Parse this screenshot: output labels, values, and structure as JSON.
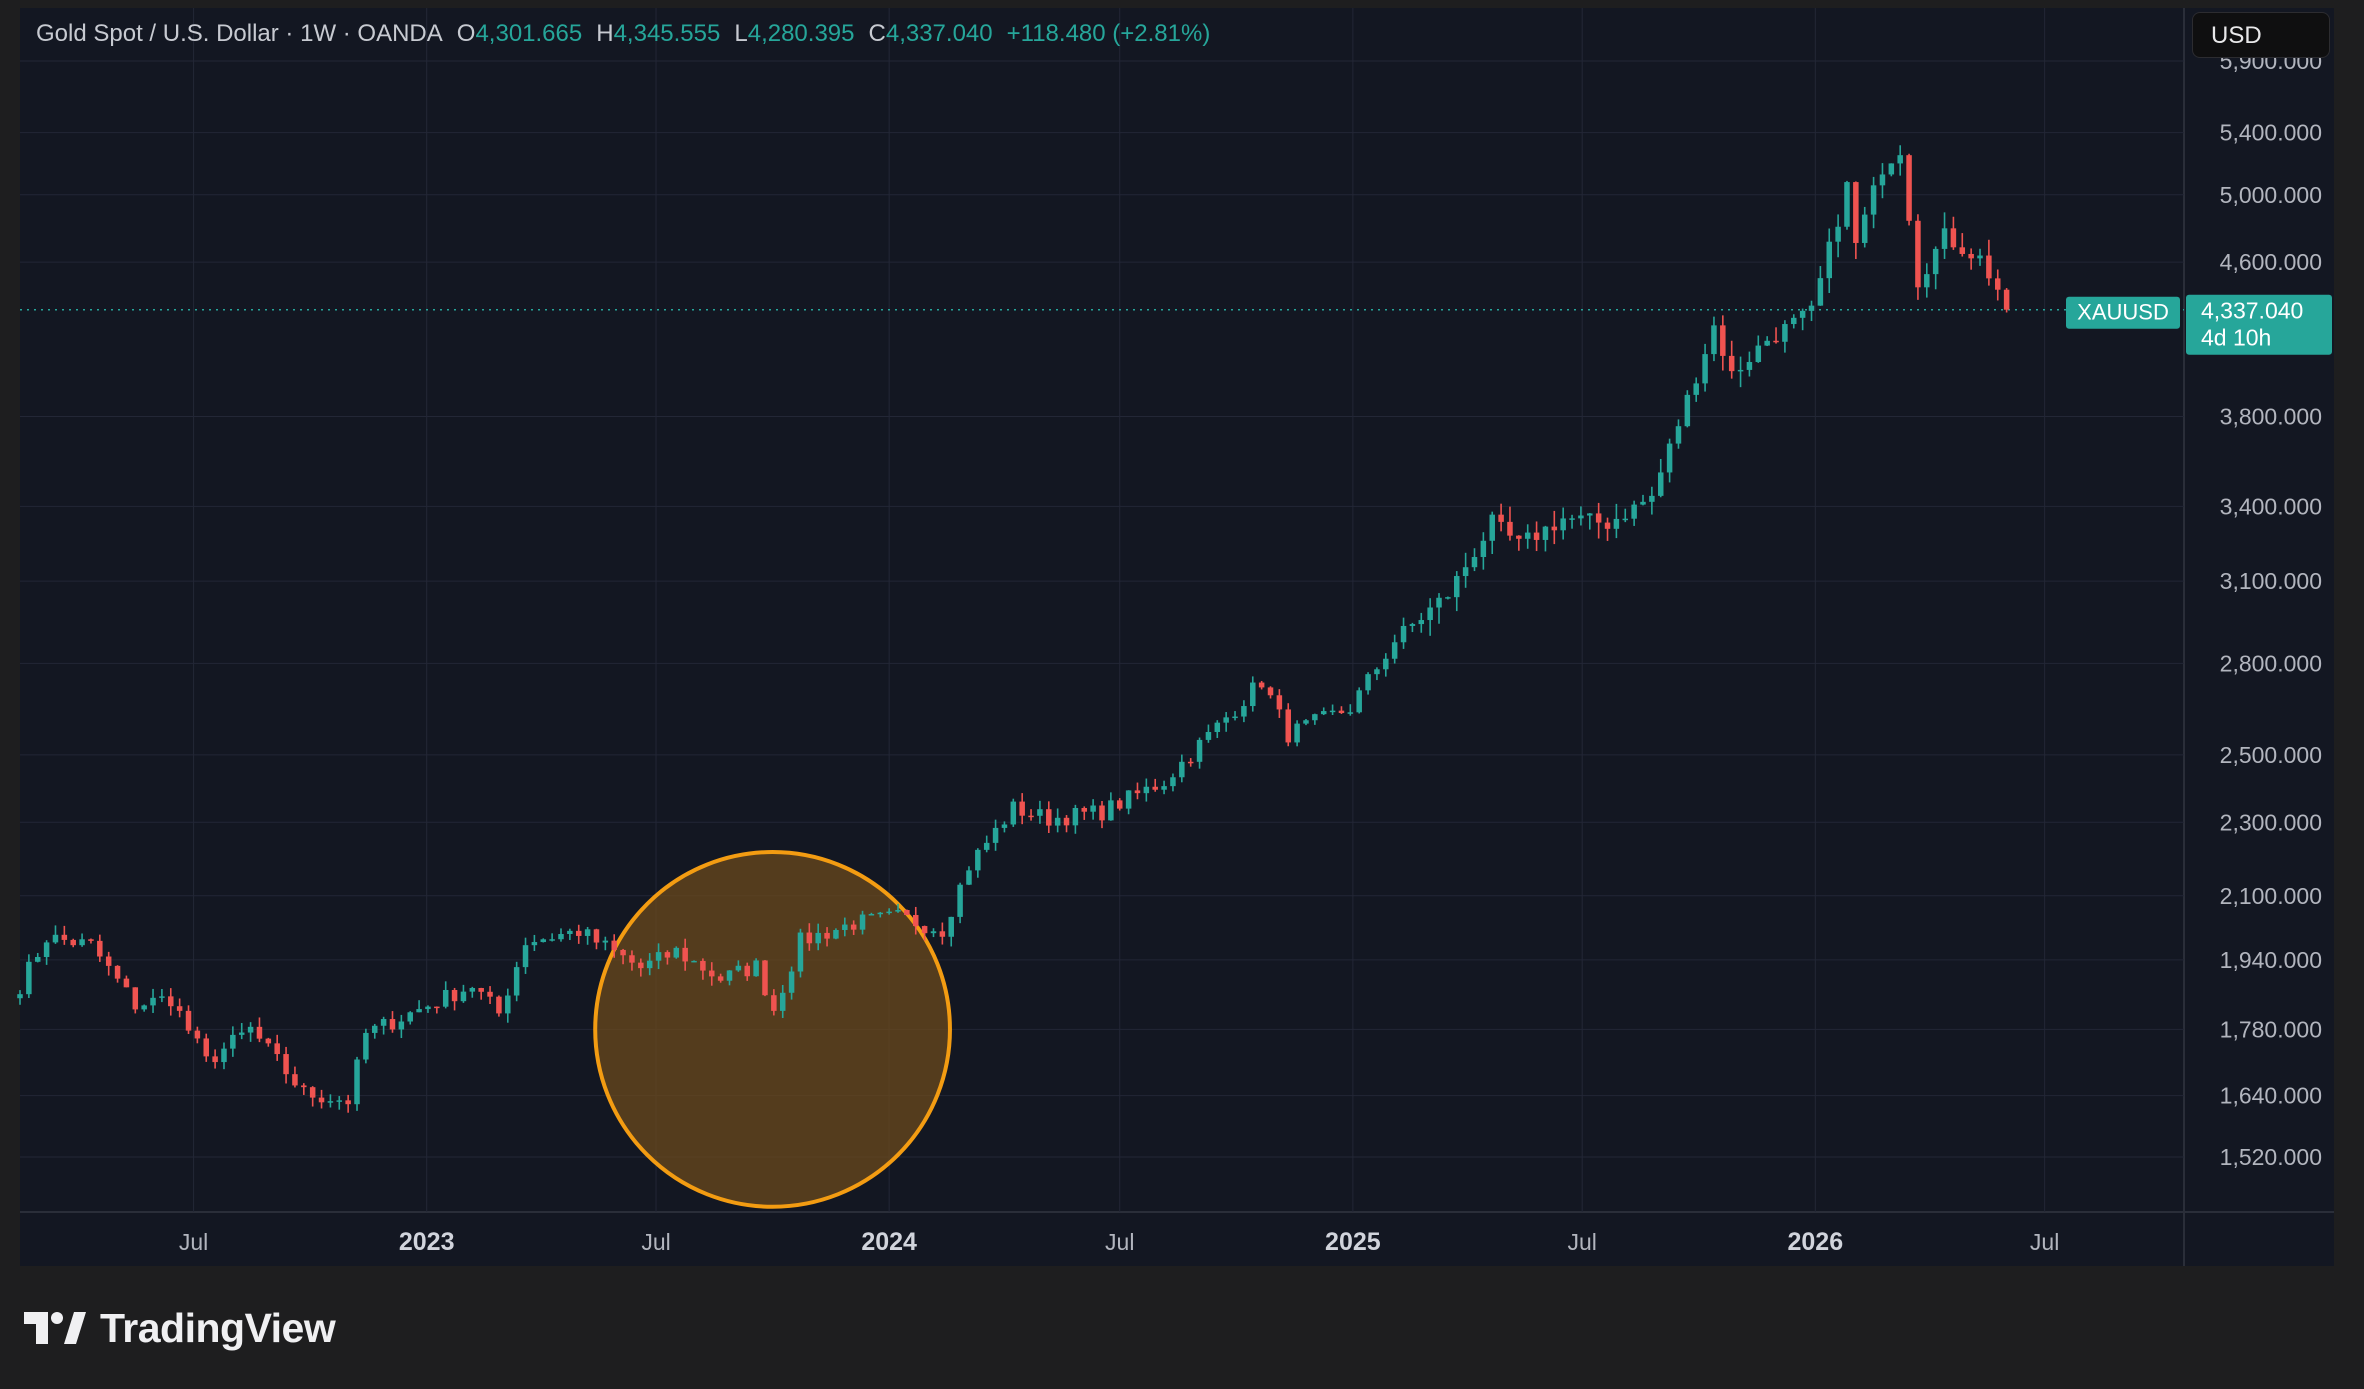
{
  "header": {
    "symbol_title": "Gold Spot / U.S. Dollar · 1W · OANDA",
    "open_label": "O",
    "open_value": "4,301.665",
    "high_label": "H",
    "high_value": "4,345.555",
    "low_label": "L",
    "low_value": "4,280.395",
    "close_label": "C",
    "close_value": "4,337.040",
    "change": "+118.480 (+2.81%)"
  },
  "currency_button": "USD",
  "price_tag": {
    "symbol": "XAUUSD",
    "price": "4,337.040",
    "countdown": "4d 10h"
  },
  "brand": {
    "name": "TradingView"
  },
  "colors": {
    "background": "#131722",
    "outer": "#1e1e1f",
    "up": "#26a69a",
    "down": "#ef5350",
    "highlight_fill": "#6b4a1c",
    "highlight_stroke": "#f39c12",
    "grid": "#232736",
    "axis_text": "#b2b5be"
  },
  "icons": {
    "brand_logo": "tradingview-logo-icon"
  },
  "chart_data": {
    "type": "candlestick",
    "title": "Gold Spot / U.S. Dollar · 1W · OANDA",
    "y_scale": "log",
    "ylim": [
      1420,
      6300
    ],
    "y_ticks": [
      {
        "value": 5900,
        "label": "5,900.000"
      },
      {
        "value": 5400,
        "label": "5,400.000"
      },
      {
        "value": 5000,
        "label": "5,000.000"
      },
      {
        "value": 4600,
        "label": "4,600.000"
      },
      {
        "value": 3800,
        "label": "3,800.000"
      },
      {
        "value": 3400,
        "label": "3,400.000"
      },
      {
        "value": 3100,
        "label": "3,100.000"
      },
      {
        "value": 2800,
        "label": "2,800.000"
      },
      {
        "value": 2500,
        "label": "2,500.000"
      },
      {
        "value": 2300,
        "label": "2,300.000"
      },
      {
        "value": 2100,
        "label": "2,100.000"
      },
      {
        "value": 1940,
        "label": "1,940.000"
      },
      {
        "value": 1780,
        "label": "1,780.000"
      },
      {
        "value": 1640,
        "label": "1,640.000"
      },
      {
        "value": 1520,
        "label": "1,520.000"
      }
    ],
    "x_range": [
      "2022-02-14",
      "2026-10-19"
    ],
    "x_ticks": [
      {
        "date": "2022-07-01",
        "label": "Jul",
        "bold": false
      },
      {
        "date": "2023-01-01",
        "label": "2023",
        "bold": true
      },
      {
        "date": "2023-07-01",
        "label": "Jul",
        "bold": false
      },
      {
        "date": "2024-01-01",
        "label": "2024",
        "bold": true
      },
      {
        "date": "2024-07-01",
        "label": "Jul",
        "bold": false
      },
      {
        "date": "2025-01-01",
        "label": "2025",
        "bold": true
      },
      {
        "date": "2025-07-01",
        "label": "Jul",
        "bold": false
      },
      {
        "date": "2026-01-01",
        "label": "2026",
        "bold": true
      },
      {
        "date": "2026-07-01",
        "label": "Jul",
        "bold": false
      }
    ],
    "last_price": 4337.04,
    "highlight": {
      "shape": "circle",
      "center_date": "2023-10-01",
      "center_price": 1780,
      "radius_weeks": 20
    },
    "anchors": [
      [
        "2022-02-14",
        1880
      ],
      [
        "2022-03-07",
        1995
      ],
      [
        "2022-04-11",
        1975
      ],
      [
        "2022-05-16",
        1835
      ],
      [
        "2022-06-13",
        1850
      ],
      [
        "2022-07-11",
        1710
      ],
      [
        "2022-08-15",
        1780
      ],
      [
        "2022-09-26",
        1645
      ],
      [
        "2022-10-31",
        1630
      ],
      [
        "2022-11-14",
        1770
      ],
      [
        "2022-12-26",
        1825
      ],
      [
        "2023-02-06",
        1880
      ],
      [
        "2023-02-27",
        1815
      ],
      [
        "2023-03-20",
        1985
      ],
      [
        "2023-05-01",
        2010
      ],
      [
        "2023-06-19",
        1920
      ],
      [
        "2023-07-17",
        1960
      ],
      [
        "2023-08-21",
        1895
      ],
      [
        "2023-09-18",
        1925
      ],
      [
        "2023-10-02",
        1825
      ],
      [
        "2023-10-23",
        1985
      ],
      [
        "2023-12-04",
        2030
      ],
      [
        "2024-01-08",
        2045
      ],
      [
        "2024-02-12",
        2015
      ],
      [
        "2024-03-04",
        2180
      ],
      [
        "2024-04-08",
        2340
      ],
      [
        "2024-05-06",
        2310
      ],
      [
        "2024-06-17",
        2330
      ],
      [
        "2024-08-05",
        2420
      ],
      [
        "2024-10-21",
        2740
      ],
      [
        "2024-11-11",
        2565
      ],
      [
        "2024-12-30",
        2650
      ],
      [
        "2025-02-03",
        2880
      ],
      [
        "2025-03-17",
        3050
      ],
      [
        "2025-04-21",
        3330
      ],
      [
        "2025-05-12",
        3240
      ],
      [
        "2025-06-16",
        3350
      ],
      [
        "2025-07-21",
        3330
      ],
      [
        "2025-08-25",
        3440
      ],
      [
        "2025-10-13",
        4250
      ],
      [
        "2025-10-27",
        4000
      ],
      [
        "2025-11-24",
        4180
      ],
      [
        "2025-12-29",
        4320
      ],
      [
        "2026-01-26",
        5050
      ],
      [
        "2026-02-02",
        4700
      ],
      [
        "2026-02-23",
        5180
      ],
      [
        "2026-03-09",
        5300
      ],
      [
        "2026-03-23",
        4500
      ],
      [
        "2026-04-13",
        4750
      ],
      [
        "2026-05-11",
        4620
      ],
      [
        "2026-05-25",
        4450
      ],
      [
        "2026-06-01",
        4337.04
      ]
    ]
  }
}
